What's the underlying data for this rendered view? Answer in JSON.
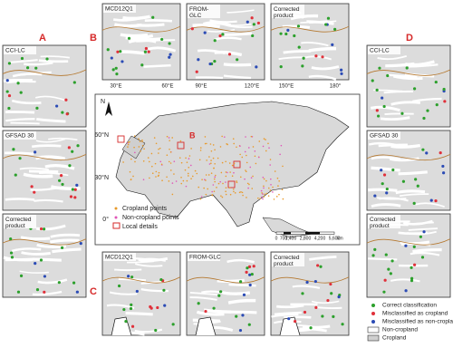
{
  "panel_groups": [
    {
      "letter": "A",
      "panels": [
        "CCI-LC",
        "GFSAD 30",
        "Corrected product"
      ]
    },
    {
      "letter": "B",
      "panels": [
        "MCD12Q1",
        "FROM-GLC",
        "Corrected product"
      ]
    },
    {
      "letter": "C",
      "panels": [
        "MCD12Q1",
        "FROM-GLC",
        "Corrected product"
      ]
    },
    {
      "letter": "D",
      "panels": [
        "CCI-LC",
        "GFSAD 30",
        "Corrected product"
      ]
    }
  ],
  "top_axis_labels": [
    "30°E",
    "60°E",
    "90°E",
    "120°E",
    "150°E",
    "180°"
  ],
  "main_map": {
    "north": "N",
    "lat_labels": [
      "60°N",
      "30°N",
      "0°"
    ],
    "region_label": "B",
    "legend": [
      "Cropland points",
      "Non-cropland points",
      "Local details"
    ],
    "scale_labels": [
      "0",
      "700",
      "1,400",
      "2,800",
      "4,200",
      "5,600"
    ],
    "scale_unit": "km"
  },
  "legend": [
    "Correct classification",
    "Misclassified as cropland",
    "Misclassified as non-cropland",
    "Non-cropland",
    "Cropland"
  ]
}
